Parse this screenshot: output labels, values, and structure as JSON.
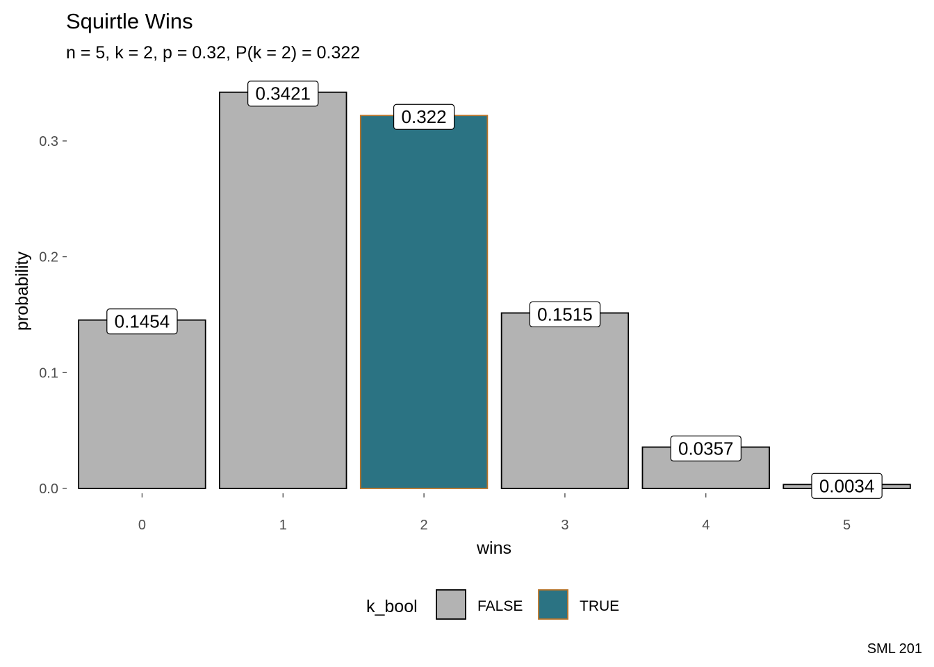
{
  "chart_data": {
    "type": "bar",
    "title": "Squirtle Wins",
    "subtitle": "n = 5, k = 2, p = 0.32, P(k = 2) = 0.322",
    "xlabel": "wins",
    "ylabel": "probability",
    "categories": [
      "0",
      "1",
      "2",
      "3",
      "4",
      "5"
    ],
    "values": [
      0.1454,
      0.3421,
      0.322,
      0.1515,
      0.0357,
      0.0034
    ],
    "data_labels": [
      "0.1454",
      "0.3421",
      "0.322",
      "0.1515",
      "0.0357",
      "0.0034"
    ],
    "highlight": [
      false,
      false,
      true,
      false,
      false,
      false
    ],
    "ylim": [
      0,
      0.35
    ],
    "yticks": [
      0.0,
      0.1,
      0.2,
      0.3
    ],
    "ytick_labels": [
      "0.0",
      "0.1",
      "0.2",
      "0.3"
    ],
    "grid": false,
    "legend": {
      "title": "k_bool",
      "placement": "bottom",
      "entries": [
        {
          "label": "FALSE",
          "fill": "#b3b3b3",
          "stroke": "#000000"
        },
        {
          "label": "TRUE",
          "fill": "#2b7383",
          "stroke": "#b8742a"
        }
      ]
    },
    "caption": "SML 201"
  }
}
